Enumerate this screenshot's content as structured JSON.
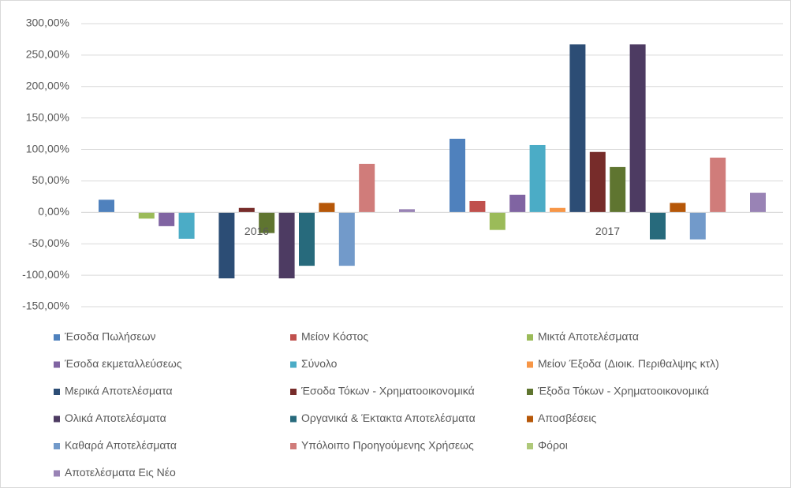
{
  "chart_data": {
    "type": "bar",
    "categories": [
      "2016",
      "2017"
    ],
    "ylim": [
      -150,
      300
    ],
    "yticks": [
      {
        "value": -150,
        "label": "-150,00%"
      },
      {
        "value": -100,
        "label": "-100,00%"
      },
      {
        "value": -50,
        "label": "-50,00%"
      },
      {
        "value": 0,
        "label": "0,00%"
      },
      {
        "value": 50,
        "label": "50,00%"
      },
      {
        "value": 100,
        "label": "100,00%"
      },
      {
        "value": 150,
        "label": "150,00%"
      },
      {
        "value": 200,
        "label": "200,00%"
      },
      {
        "value": 250,
        "label": "250,00%"
      },
      {
        "value": 300,
        "label": "300,00%"
      }
    ],
    "grid": true,
    "legend": "bottom",
    "series": [
      {
        "name": "Έσοδα Πωλήσεων",
        "color": "#4f81bd",
        "values": [
          20,
          117
        ]
      },
      {
        "name": "Μείον Κόστος",
        "color": "#c0504d",
        "values": [
          0,
          18
        ]
      },
      {
        "name": "Μικτά Αποτελέσματα",
        "color": "#9bbb59",
        "values": [
          -10,
          -28
        ]
      },
      {
        "name": "Έσοδα εκμεταλλεύσεως",
        "color": "#8064a2",
        "values": [
          -22,
          28
        ]
      },
      {
        "name": "Σύνολο",
        "color": "#4bacc6",
        "values": [
          -42,
          107
        ]
      },
      {
        "name": "Μείον Έξοδα (Διοικ. Περιθαλψης κτλ)",
        "color": "#f79646",
        "values": [
          0,
          7
        ]
      },
      {
        "name": "Μερικά Αποτελέσματα",
        "color": "#2c4d75",
        "values": [
          -105,
          267
        ]
      },
      {
        "name": "Έσοδα Τόκων - Χρηματοοικονομικά",
        "color": "#772c2a",
        "values": [
          7,
          96
        ]
      },
      {
        "name": "Έξοδα Τόκων - Χρηματοοικονομικά",
        "color": "#5f7530",
        "values": [
          -33,
          72
        ]
      },
      {
        "name": "Ολικά Αποτελέσματα",
        "color": "#4d3b62",
        "values": [
          -105,
          267
        ]
      },
      {
        "name": "Οργανικά & Έκτακτα Αποτελέσματα",
        "color": "#276a7c",
        "values": [
          -85,
          -43
        ]
      },
      {
        "name": "Αποσβέσεις",
        "color": "#b65708",
        "values": [
          15,
          15
        ]
      },
      {
        "name": "Καθαρά Αποτελέσματα",
        "color": "#729aca",
        "values": [
          -85,
          -43
        ]
      },
      {
        "name": "Υπόλοιπο Προηγούμενης Χρήσεως",
        "color": "#d07c7a",
        "values": [
          77,
          87
        ]
      },
      {
        "name": "Φόροι",
        "color": "#afc97a",
        "values": [
          0,
          0
        ]
      },
      {
        "name": "Αποτελέσματα Εις Νέο",
        "color": "#9983b5",
        "values": [
          5,
          31
        ]
      }
    ]
  }
}
